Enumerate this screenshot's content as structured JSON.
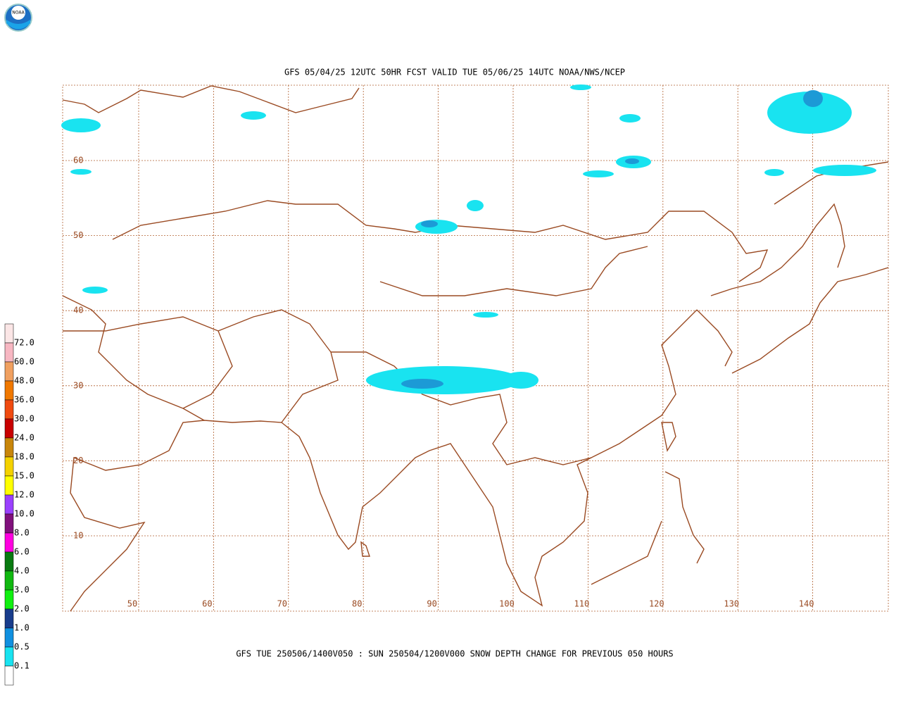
{
  "logo": "NOAA",
  "title": "GFS 05/04/25 12UTC 50HR FCST VALID TUE 05/06/25 14UTC NOAA/NWS/NCEP",
  "caption": "GFS TUE 250506/1400V050 : SUN 250504/1200V000 SNOW DEPTH CHANGE FOR PREVIOUS 050 HOURS",
  "latitudes": [
    60,
    50,
    40,
    30,
    20,
    10
  ],
  "longitudes": [
    50,
    60,
    70,
    80,
    90,
    100,
    110,
    120,
    130,
    140
  ],
  "legend": {
    "labels": [
      "72.0",
      "60.0",
      "48.0",
      "36.0",
      "30.0",
      "24.0",
      "18.0",
      "15.0",
      "12.0",
      "10.0",
      "8.0",
      "6.0",
      "4.0",
      "3.0",
      "2.0",
      "1.0",
      "0.5",
      "0.1"
    ],
    "colors": [
      "#fbe6e6",
      "#f7b7c2",
      "#f0a060",
      "#f07800",
      "#f04a10",
      "#c80000",
      "#c8860a",
      "#f4d200",
      "#ffff00",
      "#9a40ff",
      "#80107c",
      "#ff00e0",
      "#087a10",
      "#10b810",
      "#10f010",
      "#183c8c",
      "#1090e0",
      "#19e3f0",
      "#ffffff"
    ]
  }
}
